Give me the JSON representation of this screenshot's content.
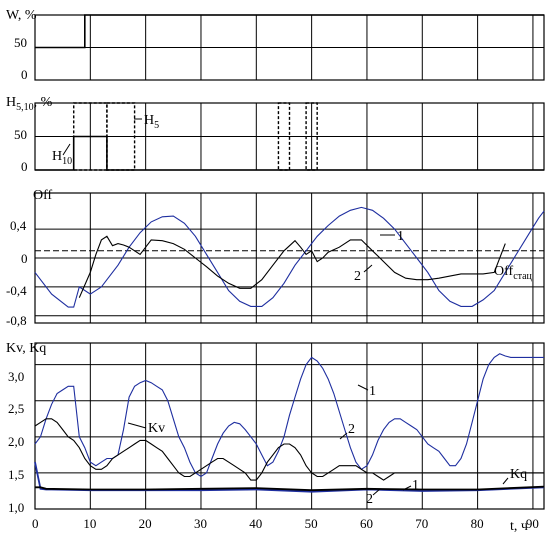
{
  "chart_data": [
    {
      "type": "line",
      "ylabel": "W, %",
      "yticks": [
        "50",
        "0"
      ],
      "ylim": [
        0,
        100
      ],
      "series": [
        {
          "name": "W",
          "color": "#000000",
          "style": "solid",
          "x": [
            0,
            9,
            9,
            92
          ],
          "y": [
            50,
            50,
            100,
            100
          ]
        }
      ]
    },
    {
      "type": "line",
      "ylabel": "H5,10, %",
      "ylabel_main": "H",
      "ylabel_sub": "5,10",
      "ylabel_tail": ", %",
      "yticks": [
        "50",
        "0"
      ],
      "ylim": [
        0,
        100
      ],
      "annotations": [
        {
          "main": "H",
          "sub": "10"
        },
        {
          "main": "H",
          "sub": "5"
        }
      ],
      "series": [
        {
          "name": "H10",
          "color": "#000000",
          "style": "solid",
          "x": [
            0,
            7,
            7,
            13,
            13,
            92
          ],
          "y": [
            0,
            0,
            50,
            50,
            0,
            0
          ]
        },
        {
          "name": "H5",
          "color": "#000000",
          "style": "dotted",
          "pulses": [
            [
              7,
              13
            ],
            [
              13,
              18
            ],
            [
              44,
              46
            ],
            [
              49,
              51
            ]
          ]
        }
      ]
    },
    {
      "type": "line",
      "ylabel": "Off",
      "yticks": [
        "0,4",
        "0",
        "-0,4",
        "-0,8"
      ],
      "ylim": [
        -0.9,
        0.9
      ],
      "reference": {
        "label_main": "Off",
        "label_sub": "стац",
        "value": 0.1
      },
      "series": [
        {
          "name": "1",
          "color": "#1f2fa0",
          "x": [
            0,
            3,
            6,
            7,
            8,
            10,
            12,
            13,
            15,
            17,
            19,
            21,
            23,
            25,
            27,
            29,
            31,
            33,
            35,
            37,
            39,
            41,
            43,
            45,
            47,
            49,
            50,
            51,
            53,
            55,
            57,
            59,
            61,
            63,
            65,
            67,
            69,
            71,
            73,
            75,
            77,
            79,
            81,
            83,
            85,
            87,
            89,
            91,
            92
          ],
          "y": [
            -0.2,
            -0.5,
            -0.68,
            -0.68,
            -0.4,
            -0.5,
            -0.4,
            -0.3,
            -0.1,
            0.15,
            0.35,
            0.5,
            0.57,
            0.58,
            0.48,
            0.3,
            0.05,
            -0.2,
            -0.45,
            -0.6,
            -0.67,
            -0.67,
            -0.55,
            -0.35,
            -0.1,
            0.1,
            0.2,
            0.3,
            0.45,
            0.58,
            0.66,
            0.7,
            0.66,
            0.55,
            0.4,
            0.2,
            0.0,
            -0.2,
            -0.45,
            -0.6,
            -0.67,
            -0.67,
            -0.58,
            -0.45,
            -0.2,
            0.05,
            0.3,
            0.55,
            0.65
          ]
        },
        {
          "name": "2",
          "color": "#000000",
          "x": [
            8,
            10,
            11,
            12,
            13,
            14,
            15,
            16,
            17,
            18,
            19,
            21,
            23,
            25,
            27,
            29,
            31,
            33,
            35,
            37,
            39,
            41,
            43,
            45,
            47,
            48,
            49,
            50,
            51,
            52,
            53,
            55,
            57,
            59,
            61,
            63,
            65,
            67,
            69,
            71,
            73,
            75,
            77,
            79,
            81,
            83,
            85
          ],
          "y": [
            -0.55,
            -0.2,
            0.05,
            0.25,
            0.3,
            0.17,
            0.2,
            0.18,
            0.15,
            0.1,
            0.05,
            0.25,
            0.24,
            0.2,
            0.12,
            0.0,
            -0.12,
            -0.25,
            -0.35,
            -0.42,
            -0.42,
            -0.3,
            -0.1,
            0.1,
            0.24,
            0.15,
            0.05,
            0.1,
            -0.05,
            0.0,
            0.08,
            0.15,
            0.25,
            0.25,
            0.1,
            -0.05,
            -0.2,
            -0.28,
            -0.3,
            -0.3,
            -0.28,
            -0.25,
            -0.22,
            -0.22,
            -0.22,
            -0.2,
            0.2
          ]
        }
      ],
      "labels": [
        "1",
        "2"
      ]
    },
    {
      "type": "line",
      "ylabel": "Kv, Kq",
      "yticks": [
        "3,0",
        "2,5",
        "2,0",
        "1,5",
        "1,0"
      ],
      "ylim": [
        1.0,
        3.3
      ],
      "xlabel": "t, ч",
      "xticks": [
        "0",
        "10",
        "20",
        "30",
        "40",
        "50",
        "60",
        "70",
        "80",
        "90"
      ],
      "xlim": [
        0,
        92
      ],
      "annotations": [
        "Kv",
        "Kq",
        "1",
        "2",
        "2",
        "1"
      ],
      "series": [
        {
          "name": "Kv 1",
          "color": "#1f2fa0",
          "x": [
            0,
            1,
            2,
            3,
            4,
            5,
            6,
            7,
            8,
            9,
            10,
            11,
            12,
            13,
            14,
            15,
            16,
            17,
            18,
            19,
            20,
            21,
            22,
            23,
            24,
            25,
            26,
            27,
            28,
            29,
            30,
            31,
            32,
            33,
            34,
            35,
            36,
            37,
            38,
            39,
            40,
            41,
            42,
            43,
            44,
            45,
            46,
            47,
            48,
            49,
            50,
            51,
            52,
            53,
            54,
            55,
            56,
            57,
            58,
            59,
            60,
            61,
            62,
            63,
            64,
            65,
            66,
            67,
            68,
            69,
            70,
            71,
            72,
            73,
            74,
            75,
            76,
            77,
            78,
            79,
            80,
            81,
            82,
            83,
            84,
            85,
            86,
            87,
            88,
            89,
            90,
            91,
            92
          ],
          "y": [
            1.9,
            2.0,
            2.25,
            2.45,
            2.6,
            2.65,
            2.7,
            2.7,
            2.0,
            1.85,
            1.65,
            1.6,
            1.65,
            1.7,
            1.7,
            1.75,
            2.1,
            2.55,
            2.7,
            2.75,
            2.78,
            2.75,
            2.7,
            2.65,
            2.5,
            2.25,
            2.0,
            1.85,
            1.65,
            1.5,
            1.45,
            1.5,
            1.7,
            1.9,
            2.05,
            2.15,
            2.2,
            2.18,
            2.1,
            2.0,
            1.9,
            1.75,
            1.6,
            1.65,
            1.8,
            2.0,
            2.3,
            2.55,
            2.8,
            3.0,
            3.1,
            3.05,
            2.95,
            2.8,
            2.6,
            2.35,
            2.1,
            1.85,
            1.65,
            1.55,
            1.6,
            1.75,
            1.95,
            2.1,
            2.2,
            2.25,
            2.25,
            2.2,
            2.15,
            2.1,
            2.0,
            1.9,
            1.85,
            1.8,
            1.7,
            1.6,
            1.6,
            1.7,
            1.9,
            2.2,
            2.5,
            2.8,
            3.0,
            3.1,
            3.15,
            3.12,
            3.1,
            3.1,
            3.1,
            3.1,
            3.1,
            3.1,
            3.1
          ]
        },
        {
          "name": "Kv 2",
          "color": "#000000",
          "x": [
            0,
            1,
            2,
            3,
            4,
            5,
            6,
            7,
            8,
            9,
            10,
            11,
            12,
            13,
            14,
            15,
            16,
            17,
            18,
            19,
            20,
            21,
            22,
            23,
            24,
            25,
            26,
            27,
            28,
            29,
            30,
            31,
            32,
            33,
            34,
            35,
            36,
            37,
            38,
            39,
            40,
            41,
            42,
            43,
            44,
            45,
            46,
            47,
            48,
            49,
            50,
            51,
            52,
            53,
            54,
            55,
            56,
            57,
            58,
            59,
            60,
            61,
            62,
            63,
            64,
            65,
            66,
            67,
            68,
            69,
            70,
            71,
            72,
            73,
            74,
            75,
            76,
            77,
            78,
            79,
            80,
            81,
            82,
            83,
            84,
            85,
            86,
            87,
            88,
            89,
            90,
            91,
            92
          ],
          "y": [
            2.15,
            2.2,
            2.25,
            2.25,
            2.2,
            2.1,
            2.0,
            1.95,
            1.85,
            1.7,
            1.6,
            1.55,
            1.55,
            1.6,
            1.7,
            1.75,
            1.8,
            1.85,
            1.9,
            1.95,
            1.95,
            1.9,
            1.85,
            1.8,
            1.7,
            1.6,
            1.5,
            1.45,
            1.45,
            1.5,
            1.55,
            1.6,
            1.65,
            1.7,
            1.7,
            1.65,
            1.6,
            1.55,
            1.5,
            1.4,
            1.4,
            1.5,
            1.65,
            1.75,
            1.85,
            1.9,
            1.9,
            1.85,
            1.75,
            1.6,
            1.5,
            1.45,
            1.45,
            1.5,
            1.55,
            1.6,
            1.6,
            1.6,
            1.6,
            1.55,
            1.5,
            1.5,
            1.45,
            1.4,
            1.45,
            1.5,
            1.5,
            1.5,
            1.5,
            1.5,
            1.5,
            1.5,
            1.5,
            1.5,
            1.5,
            1.5,
            1.5,
            1.5,
            1.5,
            1.5,
            1.5,
            1.5,
            1.5,
            1.5,
            1.5,
            1.5,
            1.5,
            1.5,
            1.5,
            1.5,
            1.5,
            1.5,
            1.5
          ]
        },
        {
          "name": "Kq 1",
          "color": "#1f2fa0",
          "x": [
            0,
            1,
            2,
            3,
            10,
            20,
            30,
            40,
            50,
            60,
            70,
            80,
            92
          ],
          "y": [
            1.65,
            1.28,
            1.27,
            1.27,
            1.26,
            1.26,
            1.26,
            1.27,
            1.24,
            1.27,
            1.25,
            1.26,
            1.3
          ]
        },
        {
          "name": "Kq 2",
          "color": "#000000",
          "x": [
            0,
            1,
            2,
            10,
            20,
            30,
            40,
            50,
            60,
            70,
            80,
            92
          ],
          "y": [
            1.3,
            1.3,
            1.28,
            1.27,
            1.27,
            1.28,
            1.29,
            1.26,
            1.28,
            1.27,
            1.27,
            1.31
          ]
        }
      ]
    }
  ]
}
